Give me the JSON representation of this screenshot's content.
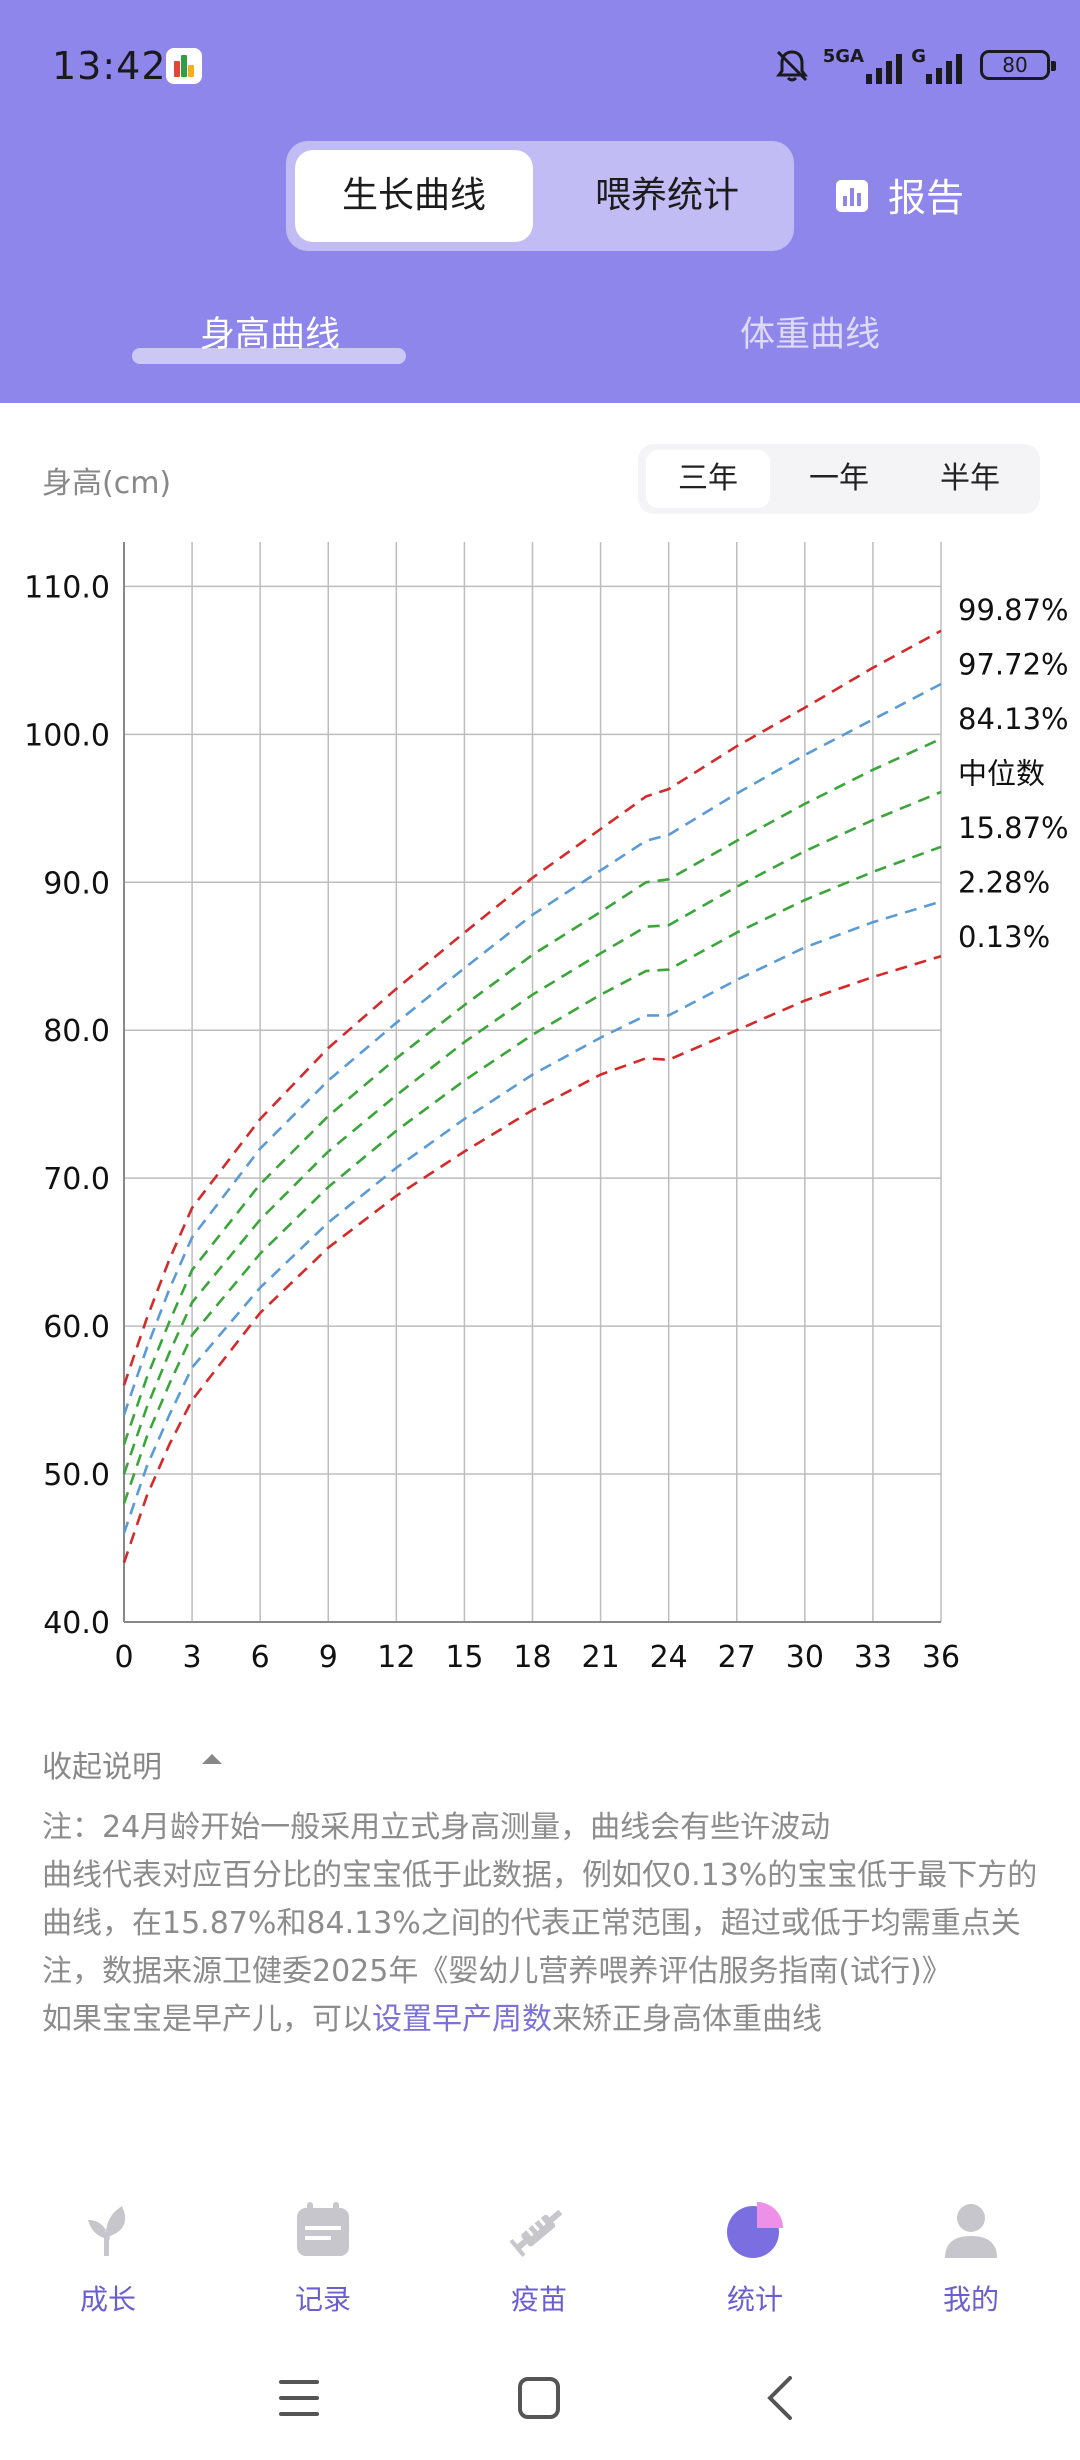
{
  "status_bar": {
    "time": "13:42",
    "net_label": "5GA",
    "net_label2": "G",
    "battery": "80"
  },
  "header": {
    "tabs": [
      {
        "label": "生长曲线",
        "active": true
      },
      {
        "label": "喂养统计",
        "active": false
      }
    ],
    "report_label": "报告",
    "report_icon": "bar-chart-icon",
    "subtabs": [
      {
        "label": "身高曲线",
        "active": true
      },
      {
        "label": "体重曲线",
        "active": false
      }
    ]
  },
  "chart_header": {
    "y_unit": "身高(cm)",
    "ranges": [
      {
        "label": "三年",
        "active": true
      },
      {
        "label": "一年",
        "active": false
      },
      {
        "label": "半年",
        "active": false
      }
    ]
  },
  "chart_data": {
    "type": "line",
    "x_ticks": [
      0,
      3,
      6,
      9,
      12,
      15,
      18,
      21,
      24,
      27,
      30,
      33,
      36
    ],
    "y_ticks": [
      "40.0",
      "50.0",
      "60.0",
      "70.0",
      "80.0",
      "90.0",
      "100.0",
      "110.0"
    ],
    "xlim": [
      0,
      36
    ],
    "ylim": [
      40,
      113
    ],
    "grid": true,
    "x": [
      0,
      1,
      2,
      3,
      6,
      9,
      12,
      15,
      18,
      21,
      23,
      24,
      27,
      30,
      33,
      36
    ],
    "series": [
      {
        "name": "99.87%",
        "color": "#d42a2a",
        "values": [
          56.0,
          60.5,
          64.5,
          68.0,
          74.0,
          78.8,
          82.8,
          86.6,
          90.3,
          93.6,
          95.8,
          96.3,
          99.2,
          101.8,
          104.5,
          107.0
        ]
      },
      {
        "name": "97.72%",
        "color": "#5b9bd5",
        "values": [
          54.0,
          58.5,
          62.5,
          66.0,
          72.0,
          76.6,
          80.5,
          84.2,
          87.8,
          90.8,
          92.8,
          93.2,
          96.0,
          98.6,
          101.0,
          103.4
        ]
      },
      {
        "name": "84.13%",
        "color": "#3aa63a",
        "values": [
          52.0,
          56.5,
          60.3,
          63.8,
          69.6,
          74.2,
          78.1,
          81.7,
          85.1,
          88.0,
          90.0,
          90.2,
          92.8,
          95.3,
          97.6,
          99.7
        ]
      },
      {
        "name": "中位数",
        "color": "#3aa63a",
        "values": [
          50.0,
          54.5,
          58.2,
          61.6,
          67.2,
          71.8,
          75.6,
          79.2,
          82.4,
          85.2,
          87.0,
          87.1,
          89.7,
          92.1,
          94.2,
          96.1
        ]
      },
      {
        "name": "15.87%",
        "color": "#3aa63a",
        "values": [
          48.0,
          52.5,
          56.1,
          59.4,
          64.9,
          69.4,
          73.2,
          76.6,
          79.7,
          82.4,
          84.0,
          84.1,
          86.6,
          88.8,
          90.7,
          92.4
        ]
      },
      {
        "name": "2.28%",
        "color": "#5b9bd5",
        "values": [
          46.0,
          50.5,
          54.0,
          57.2,
          62.6,
          67.0,
          70.7,
          74.0,
          77.0,
          79.5,
          81.0,
          81.0,
          83.4,
          85.6,
          87.3,
          88.7
        ]
      },
      {
        "name": "0.13%",
        "color": "#d42a2a",
        "values": [
          44.0,
          48.5,
          52.0,
          55.0,
          60.9,
          65.3,
          68.8,
          71.8,
          74.6,
          77.0,
          78.1,
          78.0,
          80.0,
          82.0,
          83.6,
          85.0
        ]
      }
    ]
  },
  "notes": {
    "collapse_label": "收起说明",
    "line1": "注：24月龄开始一般采用立式身高测量，曲线会有些许波动",
    "line2": "曲线代表对应百分比的宝宝低于此数据，例如仅0.13%的宝宝低于最下方的曲线，在15.87%和84.13%之间的代表正常范围，超过或低于均需重点关注，数据来源卫健委2025年《婴幼儿营养喂养评估服务指南(试行)》",
    "line3_prefix": "如果宝宝是早产儿，可以",
    "line3_link": "设置早产周数",
    "line3_suffix": "来矫正身高体重曲线"
  },
  "bottom_nav": [
    {
      "label": "成长",
      "icon": "sprout-icon",
      "active": false
    },
    {
      "label": "记录",
      "icon": "calendar-icon",
      "active": false
    },
    {
      "label": "疫苗",
      "icon": "syringe-icon",
      "active": false
    },
    {
      "label": "统计",
      "icon": "pie-chart-icon",
      "active": true
    },
    {
      "label": "我的",
      "icon": "person-icon",
      "active": false
    }
  ],
  "colors": {
    "header_bg": "#8f86ec",
    "accent": "#6a5fd0",
    "link": "#7b71d6"
  }
}
